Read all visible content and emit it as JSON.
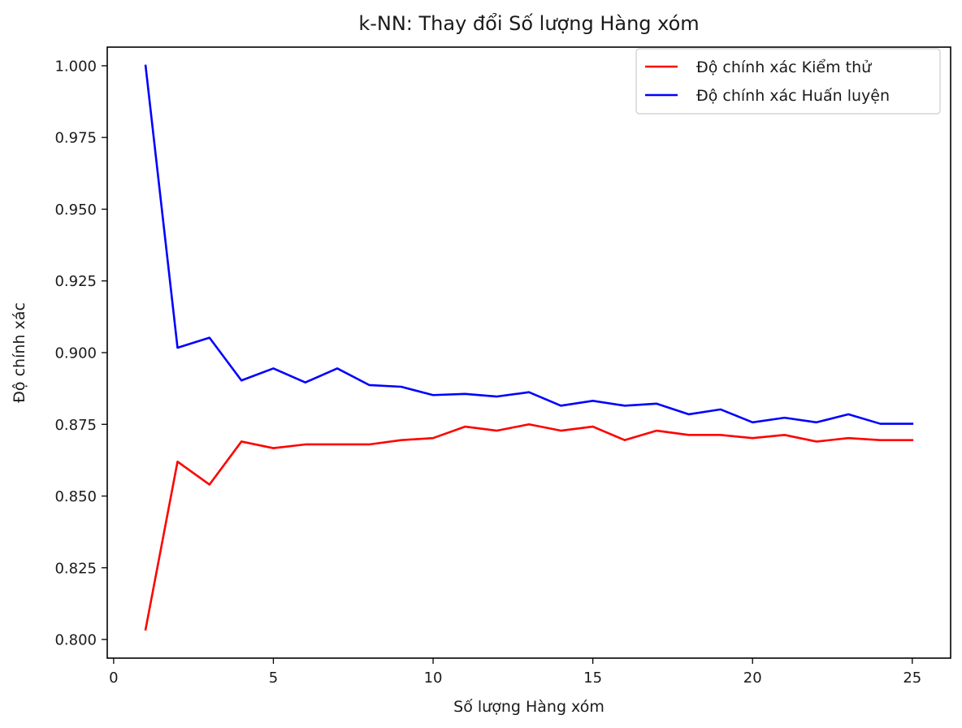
{
  "chart_data": {
    "type": "line",
    "title": "k-NN: Thay đổi Số lượng Hàng xóm",
    "xlabel": "Số lượng Hàng xóm",
    "ylabel": "Độ chính xác",
    "xlim": [
      -0.2,
      26.2
    ],
    "ylim": [
      0.7935,
      1.0065
    ],
    "xticks": [
      0,
      5,
      10,
      15,
      20,
      25
    ],
    "xtick_labels": [
      "0",
      "5",
      "10",
      "15",
      "20",
      "25"
    ],
    "yticks": [
      0.8,
      0.825,
      0.85,
      0.875,
      0.9,
      0.925,
      0.95,
      0.975,
      1.0
    ],
    "ytick_labels": [
      "0.800",
      "0.825",
      "0.850",
      "0.875",
      "0.900",
      "0.925",
      "0.950",
      "0.975",
      "1.000"
    ],
    "grid": false,
    "legend_position": "top-right",
    "x": [
      1,
      2,
      3,
      4,
      5,
      6,
      7,
      8,
      9,
      10,
      11,
      12,
      13,
      14,
      15,
      16,
      17,
      18,
      19,
      20,
      21,
      22,
      23,
      24,
      25
    ],
    "series": [
      {
        "name": "Độ chính xác Kiểm thử",
        "color": "#ff0000",
        "values": [
          0.8035,
          0.862,
          0.854,
          0.869,
          0.8667,
          0.868,
          0.868,
          0.868,
          0.8695,
          0.8702,
          0.8742,
          0.8728,
          0.875,
          0.8728,
          0.8742,
          0.8695,
          0.8728,
          0.8713,
          0.8713,
          0.8702,
          0.8713,
          0.869,
          0.8702,
          0.8695,
          0.8695
        ]
      },
      {
        "name": "Độ chính xác Huấn luyện",
        "color": "#0000ff",
        "values": [
          1.0,
          0.9017,
          0.9052,
          0.8903,
          0.8945,
          0.8896,
          0.8945,
          0.8887,
          0.8881,
          0.8852,
          0.8856,
          0.8847,
          0.8862,
          0.8815,
          0.8832,
          0.8815,
          0.8822,
          0.8785,
          0.8802,
          0.8757,
          0.8773,
          0.8757,
          0.8785,
          0.8752,
          0.8752
        ]
      }
    ]
  }
}
